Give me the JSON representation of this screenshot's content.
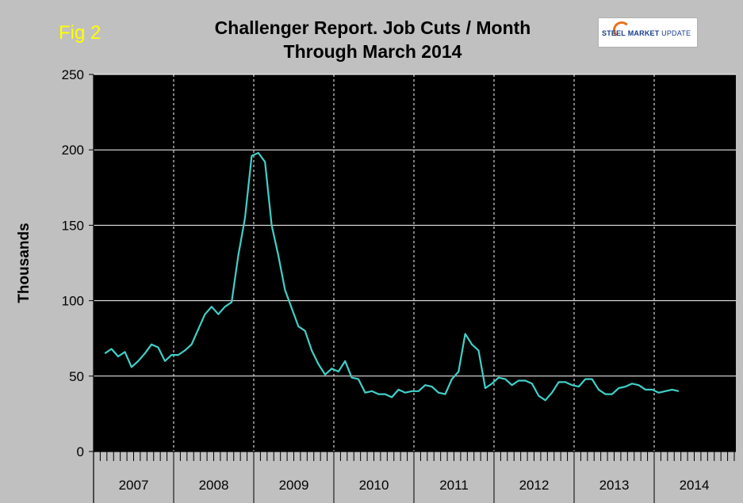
{
  "fig_label": "Fig 2",
  "logo": {
    "word1": "STEEL",
    "word2": "MARKET",
    "word3": "UPDATE"
  },
  "chart_data": {
    "type": "line",
    "title": "Challenger Report. Job Cuts / Month",
    "subtitle": "Through March 2014",
    "xlabel": "",
    "ylabel": "Thousands",
    "ylim": [
      0,
      250
    ],
    "yticks": [
      0,
      50,
      100,
      150,
      200,
      250
    ],
    "grid": "horizontal and vertical (year boundaries)",
    "years": [
      "2007",
      "2008",
      "2009",
      "2010",
      "2011",
      "2012",
      "2013",
      "2014"
    ],
    "months_per_year": [
      12,
      12,
      12,
      12,
      12,
      12,
      12,
      3
    ],
    "series": [
      {
        "color": "#40d0c8",
        "values": [
          65,
          68,
          63,
          66,
          56,
          60,
          65,
          71,
          69,
          60,
          64,
          64,
          67,
          71,
          81,
          91,
          96,
          91,
          96,
          99,
          130,
          155,
          196,
          198,
          192,
          150,
          130,
          107,
          95,
          83,
          80,
          67,
          58,
          51,
          55,
          53,
          60,
          49,
          48,
          39,
          40,
          38,
          38,
          36,
          41,
          39,
          40,
          40,
          44,
          43,
          39,
          38,
          48,
          53,
          78,
          71,
          67,
          42,
          45,
          49,
          48,
          44,
          47,
          47,
          45,
          37,
          34,
          39,
          46,
          46,
          44,
          43,
          48,
          48,
          41,
          38,
          38,
          42,
          43,
          45,
          44,
          41,
          41,
          39,
          40,
          41,
          40
        ]
      }
    ]
  }
}
